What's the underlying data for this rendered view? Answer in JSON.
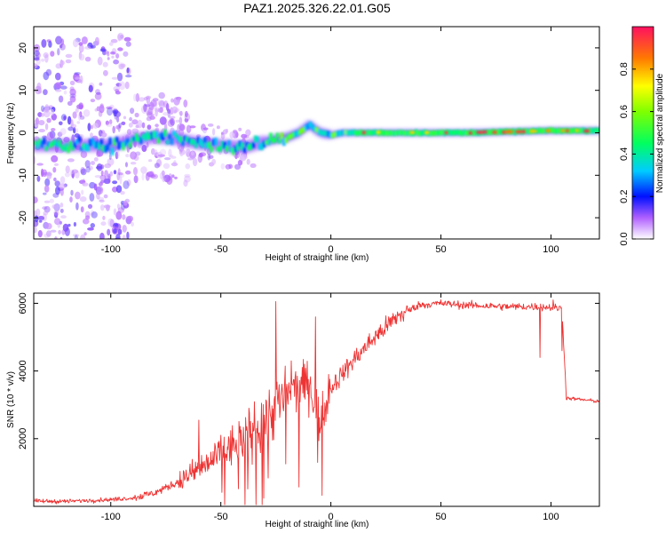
{
  "title": "PAZ1.2025.326.22.01.G05",
  "chart_data": [
    {
      "type": "heatmap",
      "name": "spectrogram",
      "xlabel": "Height of straight line (km)",
      "ylabel": "Frequency (Hz)",
      "xlim": [
        -135,
        122
      ],
      "ylim": [
        -25,
        25
      ],
      "xticks": [
        -100,
        -50,
        0,
        50,
        100
      ],
      "yticks": [
        -20,
        -10,
        0,
        10,
        20
      ],
      "colorbar": {
        "label": "Normalized spectral amplitude",
        "range": [
          0,
          1
        ],
        "ticks": [
          0.0,
          0.2,
          0.4,
          0.6,
          0.8
        ],
        "tick_labels": [
          "0.0",
          "0.2",
          "0.4",
          "0.6",
          "0.8"
        ]
      },
      "ridge_frequency_points": [
        [
          -135,
          -3
        ],
        [
          -120,
          -3
        ],
        [
          -100,
          -3
        ],
        [
          -90,
          -1.5
        ],
        [
          -80,
          -1
        ],
        [
          -70,
          -1.5
        ],
        [
          -60,
          -2.5
        ],
        [
          -50,
          -3
        ],
        [
          -40,
          -3.5
        ],
        [
          -30,
          -2
        ],
        [
          -25,
          -1.5
        ],
        [
          -20,
          -1
        ],
        [
          -15,
          0
        ],
        [
          -10,
          2
        ],
        [
          -8,
          1
        ],
        [
          -5,
          0
        ],
        [
          0,
          -0.5
        ],
        [
          5,
          0
        ],
        [
          20,
          0
        ],
        [
          60,
          0
        ],
        [
          100,
          0.5
        ],
        [
          122,
          0.5
        ]
      ]
    },
    {
      "type": "line",
      "name": "snr",
      "xlabel": "Height of straight line (km)",
      "ylabel": "SNR (10 * v/v)",
      "xlim": [
        -135,
        122
      ],
      "ylim": [
        0,
        6300
      ],
      "xticks": [
        -100,
        -50,
        0,
        50,
        100
      ],
      "yticks": [
        2000,
        4000,
        6000
      ],
      "series_color": "#ee3333",
      "trend_points": [
        [
          -135,
          150
        ],
        [
          -120,
          150
        ],
        [
          -100,
          200
        ],
        [
          -90,
          250
        ],
        [
          -80,
          400
        ],
        [
          -70,
          700
        ],
        [
          -60,
          1100
        ],
        [
          -50,
          1500
        ],
        [
          -40,
          2000
        ],
        [
          -30,
          2600
        ],
        [
          -20,
          3300
        ],
        [
          -10,
          3700
        ],
        [
          -5,
          2500
        ],
        [
          0,
          3500
        ],
        [
          10,
          4300
        ],
        [
          20,
          5000
        ],
        [
          30,
          5600
        ],
        [
          40,
          5950
        ],
        [
          50,
          6000
        ],
        [
          60,
          5950
        ],
        [
          80,
          5900
        ],
        [
          95,
          5900
        ],
        [
          105,
          5850
        ],
        [
          107,
          3200
        ],
        [
          122,
          3100
        ]
      ],
      "spikes": [
        [
          -60,
          2550
        ],
        [
          -50,
          2100
        ],
        [
          -25,
          6050
        ],
        [
          -18,
          4300
        ],
        [
          -7,
          5600
        ],
        [
          -6,
          1300
        ],
        [
          -1,
          3900
        ],
        [
          95,
          4400
        ],
        [
          101,
          6100
        ],
        [
          105,
          4600
        ]
      ]
    }
  ]
}
